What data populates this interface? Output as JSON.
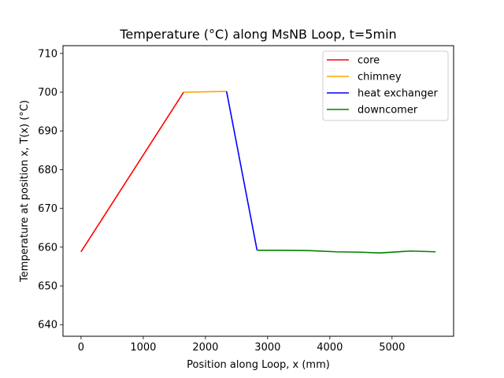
{
  "chart_data": {
    "type": "line",
    "title": "Temperature (°C) along MsNB Loop, t=5min",
    "xlabel": "Position along Loop, x (mm)",
    "ylabel": "Temperature at position x, T(x) (°C)",
    "xlim": [
      -290,
      5990
    ],
    "ylim": [
      637,
      712
    ],
    "xticks": [
      0,
      1000,
      2000,
      3000,
      4000,
      5000
    ],
    "yticks": [
      640,
      650,
      660,
      670,
      680,
      690,
      700,
      710
    ],
    "grid": false,
    "legend_position": "top-right",
    "series": [
      {
        "name": "core",
        "color": "#ff0000",
        "x": [
          0,
          1650
        ],
        "y": [
          658.8,
          700.0
        ]
      },
      {
        "name": "chimney",
        "color": "#ffa500",
        "x": [
          1650,
          2340
        ],
        "y": [
          700.0,
          700.2
        ]
      },
      {
        "name": "heat exchanger",
        "color": "#0000ff",
        "x": [
          2340,
          2830
        ],
        "y": [
          700.2,
          659.2
        ]
      },
      {
        "name": "downcomer",
        "color": "#008000",
        "x": [
          2830,
          3200,
          3700,
          4100,
          4500,
          4800,
          5300,
          5700
        ],
        "y": [
          659.2,
          659.2,
          659.1,
          658.8,
          658.7,
          658.5,
          659.0,
          658.8
        ]
      }
    ]
  }
}
